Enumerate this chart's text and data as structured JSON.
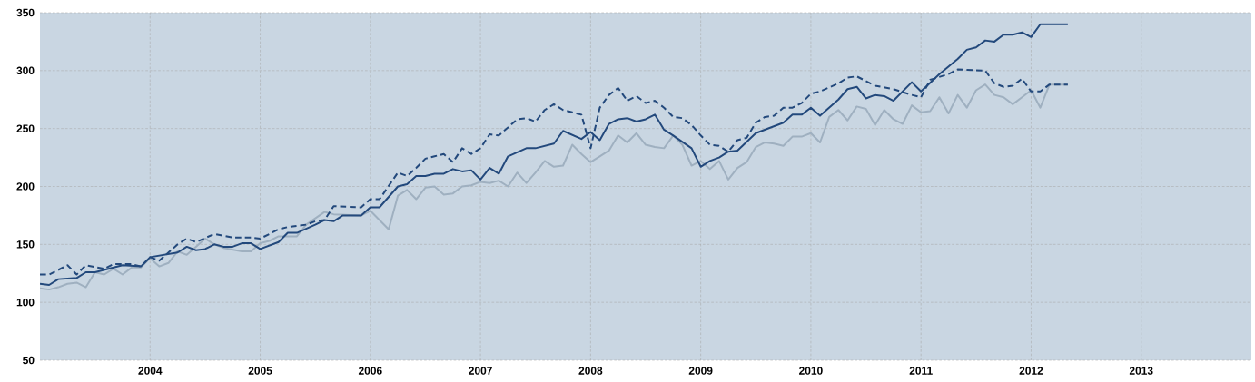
{
  "chart_data": {
    "type": "line",
    "xlim": [
      "2003-01",
      "2014-01"
    ],
    "ylim": [
      50,
      350
    ],
    "xticks": [
      "2004",
      "2005",
      "2006",
      "2007",
      "2008",
      "2009",
      "2010",
      "2011",
      "2012",
      "2013"
    ],
    "yticks": [
      50,
      100,
      150,
      200,
      250,
      300,
      350
    ],
    "grid": true,
    "marker": "none",
    "series": [
      {
        "color": "#9fb0c0",
        "line_style": "solid",
        "x": [
          "2003-01",
          "2003-02",
          "2003-03",
          "2003-04",
          "2003-05",
          "2003-06",
          "2003-07",
          "2003-08",
          "2003-09",
          "2003-10",
          "2003-11",
          "2003-12",
          "2004-01",
          "2004-02",
          "2004-03",
          "2004-04",
          "2004-05",
          "2004-06",
          "2004-07",
          "2004-08",
          "2004-09",
          "2004-11",
          "2004-12",
          "2005-01",
          "2005-02",
          "2005-03",
          "2005-04",
          "2005-05",
          "2005-06",
          "2005-08",
          "2005-09",
          "2005-12",
          "2006-01",
          "2006-02",
          "2006-03",
          "2006-04",
          "2006-05",
          "2006-06",
          "2006-07",
          "2006-08",
          "2006-09",
          "2006-10",
          "2006-11",
          "2006-12",
          "2007-01",
          "2007-02",
          "2007-03",
          "2007-04",
          "2007-05",
          "2007-06",
          "2007-07",
          "2007-08",
          "2007-09",
          "2007-10",
          "2007-11",
          "2007-12",
          "2008-01",
          "2008-02",
          "2008-03",
          "2008-04",
          "2008-05",
          "2008-06",
          "2008-07",
          "2008-08",
          "2008-09",
          "2008-10",
          "2008-11",
          "2008-12",
          "2009-01",
          "2009-02",
          "2009-03",
          "2009-04",
          "2009-05",
          "2009-06",
          "2009-07",
          "2009-08",
          "2009-09",
          "2009-10",
          "2009-11",
          "2009-12",
          "2010-01",
          "2010-02",
          "2010-03",
          "2010-04",
          "2010-05",
          "2010-06",
          "2010-07",
          "2010-08",
          "2010-09",
          "2010-10",
          "2010-11",
          "2010-12",
          "2011-01",
          "2011-02",
          "2011-03",
          "2011-04",
          "2011-05",
          "2011-06",
          "2011-07",
          "2011-08",
          "2011-09",
          "2011-10",
          "2011-11",
          "2011-12",
          "2012-01",
          "2012-02",
          "2012-03",
          "2012-05"
        ],
        "values": [
          112,
          111,
          113,
          116,
          117,
          113,
          126,
          124,
          129,
          124,
          130,
          130,
          138,
          131,
          134,
          144,
          141,
          148,
          155,
          150,
          147,
          144,
          144,
          151,
          153,
          157,
          157,
          157,
          167,
          178,
          176,
          175,
          179,
          171,
          163,
          192,
          197,
          189,
          199,
          200,
          193,
          194,
          200,
          201,
          204,
          203,
          205,
          200,
          212,
          203,
          212,
          222,
          217,
          218,
          236,
          228,
          221,
          226,
          231,
          244,
          238,
          246,
          236,
          234,
          233,
          244,
          236,
          218,
          222,
          215,
          222,
          206,
          216,
          221,
          234,
          238,
          237,
          235,
          243,
          243,
          246,
          238,
          260,
          266,
          257,
          269,
          267,
          253,
          266,
          258,
          254,
          270,
          264,
          265,
          277,
          263,
          279,
          268,
          283,
          288,
          279,
          277,
          271,
          277,
          283,
          268,
          288,
          288
        ]
      },
      {
        "color": "#23497c",
        "line_style": "dashed",
        "x": [
          "2003-01",
          "2003-02",
          "2003-04",
          "2003-05",
          "2003-06",
          "2003-08",
          "2003-09",
          "2003-10",
          "2003-11",
          "2003-12",
          "2004-01",
          "2004-02",
          "2004-04",
          "2004-05",
          "2004-06",
          "2004-08",
          "2004-10",
          "2004-12",
          "2005-01",
          "2005-03",
          "2005-04",
          "2005-06",
          "2005-07",
          "2005-08",
          "2005-09",
          "2005-12",
          "2006-01",
          "2006-02",
          "2006-04",
          "2006-05",
          "2006-06",
          "2006-07",
          "2006-08",
          "2006-09",
          "2006-10",
          "2006-11",
          "2006-12",
          "2007-01",
          "2007-02",
          "2007-03",
          "2007-04",
          "2007-05",
          "2007-06",
          "2007-07",
          "2007-08",
          "2007-09",
          "2007-10",
          "2007-11",
          "2007-12",
          "2008-01",
          "2008-02",
          "2008-03",
          "2008-04",
          "2008-05",
          "2008-06",
          "2008-07",
          "2008-08",
          "2008-09",
          "2008-10",
          "2008-11",
          "2008-12",
          "2009-01",
          "2009-02",
          "2009-03",
          "2009-04",
          "2009-05",
          "2009-06",
          "2009-07",
          "2009-08",
          "2009-09",
          "2009-10",
          "2009-11",
          "2009-12",
          "2010-01",
          "2010-02",
          "2010-04",
          "2010-05",
          "2010-06",
          "2010-08",
          "2010-10",
          "2010-12",
          "2011-01",
          "2011-02",
          "2011-04",
          "2011-05",
          "2011-08",
          "2011-09",
          "2011-10",
          "2011-11",
          "2011-12",
          "2012-01",
          "2012-02",
          "2012-03",
          "2012-05"
        ],
        "values": [
          124,
          124,
          132,
          124,
          132,
          129,
          133,
          133,
          133,
          131,
          139,
          136,
          150,
          155,
          152,
          159,
          156,
          156,
          155,
          163,
          165,
          167,
          170,
          171,
          183,
          182,
          189,
          189,
          212,
          209,
          216,
          224,
          226,
          228,
          221,
          233,
          228,
          233,
          245,
          244,
          251,
          258,
          259,
          256,
          266,
          271,
          266,
          264,
          262,
          233,
          268,
          279,
          285,
          274,
          278,
          272,
          274,
          268,
          260,
          259,
          253,
          244,
          236,
          235,
          230,
          240,
          242,
          255,
          260,
          261,
          268,
          268,
          272,
          280,
          282,
          289,
          294,
          295,
          287,
          284,
          279,
          277,
          292,
          297,
          301,
          300,
          289,
          286,
          287,
          293,
          282,
          282,
          288,
          288
        ]
      },
      {
        "color": "#23497c",
        "line_style": "solid",
        "x": [
          "2003-01",
          "2003-02",
          "2003-03",
          "2003-05",
          "2003-06",
          "2003-07",
          "2003-10",
          "2003-12",
          "2004-01",
          "2004-04",
          "2004-05",
          "2004-06",
          "2004-07",
          "2004-08",
          "2004-09",
          "2004-10",
          "2004-11",
          "2004-12",
          "2005-01",
          "2005-03",
          "2005-04",
          "2005-05",
          "2005-07",
          "2005-08",
          "2005-09",
          "2005-10",
          "2005-12",
          "2006-01",
          "2006-02",
          "2006-04",
          "2006-05",
          "2006-06",
          "2006-07",
          "2006-08",
          "2006-09",
          "2006-10",
          "2006-11",
          "2006-12",
          "2007-01",
          "2007-02",
          "2007-03",
          "2007-04",
          "2007-06",
          "2007-07",
          "2007-09",
          "2007-10",
          "2007-12",
          "2008-01",
          "2008-02",
          "2008-03",
          "2008-04",
          "2008-05",
          "2008-06",
          "2008-07",
          "2008-08",
          "2008-09",
          "2008-10",
          "2008-12",
          "2009-01",
          "2009-02",
          "2009-03",
          "2009-04",
          "2009-05",
          "2009-07",
          "2009-10",
          "2009-11",
          "2009-12",
          "2010-01",
          "2010-02",
          "2010-04",
          "2010-05",
          "2010-06",
          "2010-07",
          "2010-08",
          "2010-09",
          "2010-10",
          "2010-12",
          "2011-01",
          "2011-03",
          "2011-05",
          "2011-06",
          "2011-07",
          "2011-08",
          "2011-09",
          "2011-10",
          "2011-11",
          "2011-12",
          "2012-01",
          "2012-02",
          "2012-05"
        ],
        "values": [
          116,
          115,
          120,
          121,
          126,
          126,
          132,
          131,
          139,
          143,
          148,
          145,
          146,
          150,
          148,
          148,
          151,
          151,
          146,
          152,
          160,
          160,
          167,
          171,
          170,
          175,
          175,
          182,
          182,
          200,
          202,
          209,
          209,
          211,
          211,
          215,
          213,
          214,
          206,
          216,
          211,
          226,
          233,
          233,
          237,
          248,
          241,
          247,
          240,
          254,
          258,
          259,
          256,
          258,
          262,
          249,
          244,
          233,
          217,
          222,
          225,
          230,
          231,
          246,
          255,
          262,
          262,
          268,
          261,
          275,
          284,
          286,
          276,
          279,
          278,
          274,
          290,
          282,
          297,
          310,
          318,
          320,
          326,
          325,
          331,
          331,
          333,
          329,
          340,
          340
        ]
      }
    ]
  }
}
